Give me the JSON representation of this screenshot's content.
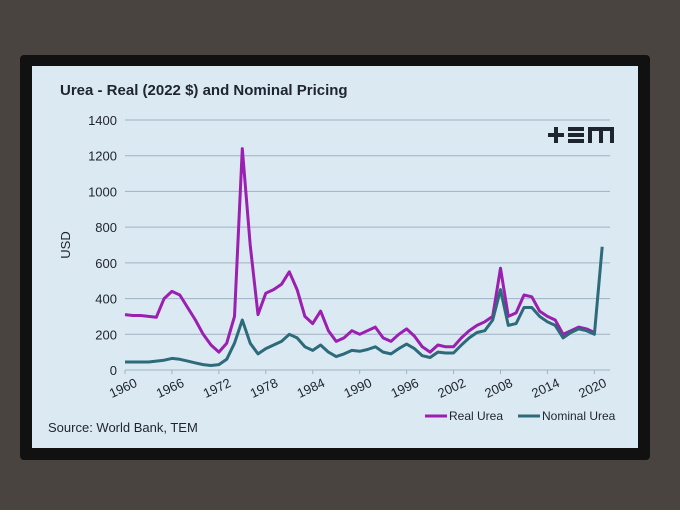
{
  "chart_data": {
    "type": "line",
    "title": "Urea - Real (2022 $) and Nominal Pricing",
    "y_label": "USD",
    "source": "Source: World Bank, TEM",
    "x": [
      1960,
      1961,
      1962,
      1963,
      1964,
      1965,
      1966,
      1967,
      1968,
      1969,
      1970,
      1971,
      1972,
      1973,
      1974,
      1975,
      1976,
      1977,
      1978,
      1979,
      1980,
      1981,
      1982,
      1983,
      1984,
      1985,
      1986,
      1987,
      1988,
      1989,
      1990,
      1991,
      1992,
      1993,
      1994,
      1995,
      1996,
      1997,
      1998,
      1999,
      2000,
      2001,
      2002,
      2003,
      2004,
      2005,
      2006,
      2007,
      2008,
      2009,
      2010,
      2011,
      2012,
      2013,
      2014,
      2015,
      2016,
      2017,
      2018,
      2019,
      2020,
      2021
    ],
    "series": [
      {
        "name": "Real Urea",
        "color": "#9b1fb0",
        "values": [
          310,
          305,
          305,
          300,
          295,
          400,
          440,
          420,
          350,
          280,
          200,
          140,
          100,
          150,
          300,
          1240,
          700,
          310,
          430,
          450,
          480,
          550,
          450,
          300,
          260,
          330,
          220,
          160,
          180,
          220,
          200,
          220,
          240,
          180,
          160,
          200,
          230,
          190,
          130,
          100,
          140,
          130,
          130,
          180,
          220,
          250,
          270,
          300,
          570,
          300,
          320,
          420,
          410,
          330,
          300,
          280,
          200,
          220,
          240,
          230,
          210,
          null
        ]
      },
      {
        "name": "Nominal Urea",
        "color": "#2e6b7a",
        "values": [
          45,
          45,
          45,
          45,
          50,
          55,
          65,
          60,
          50,
          40,
          30,
          25,
          30,
          60,
          150,
          280,
          150,
          90,
          120,
          140,
          160,
          200,
          180,
          130,
          110,
          140,
          100,
          75,
          90,
          110,
          105,
          115,
          130,
          100,
          90,
          120,
          145,
          120,
          80,
          70,
          100,
          95,
          95,
          140,
          180,
          210,
          220,
          280,
          450,
          250,
          260,
          350,
          350,
          300,
          270,
          250,
          180,
          210,
          230,
          220,
          200,
          690
        ]
      }
    ],
    "xlim": [
      1960,
      2022
    ],
    "xticks": [
      1960,
      1966,
      1972,
      1978,
      1984,
      1990,
      1996,
      2002,
      2008,
      2014,
      2020
    ],
    "ylim": [
      0,
      1400
    ],
    "yticks": [
      0,
      200,
      400,
      600,
      800,
      1000,
      1200,
      1400
    ],
    "grid": true,
    "legend": "bottom-right"
  }
}
